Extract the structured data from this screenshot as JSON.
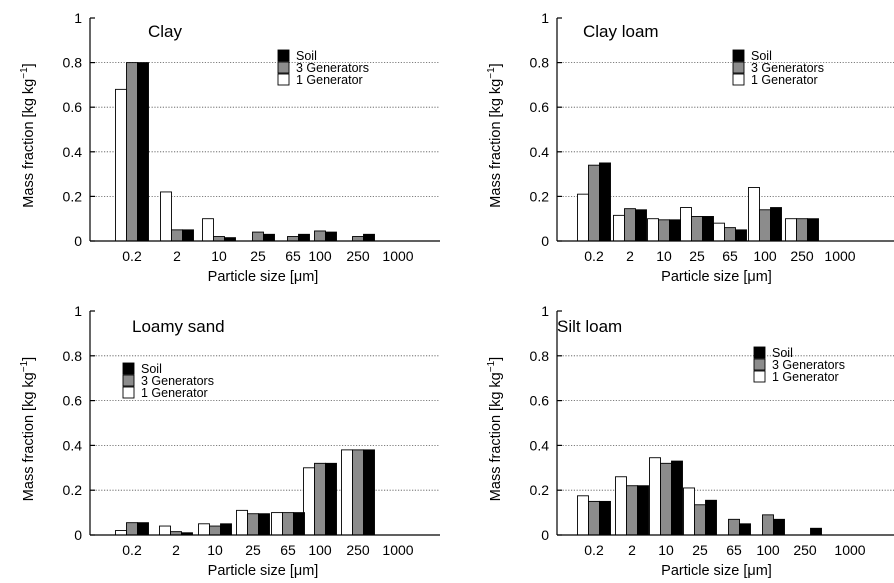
{
  "chart_data": [
    {
      "type": "bar",
      "title": "Clay",
      "xlabel": "Particle size [μm]",
      "ylabel": "Mass fraction [kg kg",
      "ylabel_sup": "−1",
      "ylabel_close": "]",
      "ylim": [
        0,
        1
      ],
      "yticks": [
        "0",
        "0.2",
        "0.4",
        "0.6",
        "0.8",
        "1"
      ],
      "categories": [
        "0.2",
        "2",
        "10",
        "25",
        "65",
        "100",
        "250",
        "1000"
      ],
      "legend_position": "top-right",
      "grid": "horizontal dotted",
      "series": [
        {
          "name": "1 Generator",
          "color": "#ffffff",
          "values": [
            0.68,
            0.22,
            0.1,
            0.0,
            0.0,
            0.0,
            0.0,
            0.0
          ]
        },
        {
          "name": "3 Generators",
          "color": "#8c8c8c",
          "values": [
            0.8,
            0.05,
            0.02,
            0.04,
            0.02,
            0.045,
            0.02,
            0.0
          ]
        },
        {
          "name": "Soil",
          "color": "#000000",
          "values": [
            0.8,
            0.05,
            0.015,
            0.03,
            0.03,
            0.04,
            0.03,
            0.0
          ]
        }
      ]
    },
    {
      "type": "bar",
      "title": "Clay loam",
      "xlabel": "Particle size [μm]",
      "ylabel": "Mass fraction [kg kg",
      "ylabel_sup": "−1",
      "ylabel_close": "]",
      "ylim": [
        0,
        1
      ],
      "yticks": [
        "0",
        "0.2",
        "0.4",
        "0.6",
        "0.8",
        "1"
      ],
      "categories": [
        "0.2",
        "2",
        "10",
        "25",
        "65",
        "100",
        "250",
        "1000"
      ],
      "legend_position": "top-right",
      "grid": "horizontal dotted",
      "series": [
        {
          "name": "1 Generator",
          "color": "#ffffff",
          "values": [
            0.21,
            0.115,
            0.1,
            0.15,
            0.08,
            0.24,
            0.1,
            0.0
          ]
        },
        {
          "name": "3 Generators",
          "color": "#8c8c8c",
          "values": [
            0.34,
            0.145,
            0.095,
            0.11,
            0.06,
            0.14,
            0.1,
            0.0
          ]
        },
        {
          "name": "Soil",
          "color": "#000000",
          "values": [
            0.35,
            0.14,
            0.095,
            0.11,
            0.05,
            0.15,
            0.1,
            0.0
          ]
        }
      ]
    },
    {
      "type": "bar",
      "title": "Loamy sand",
      "xlabel": "Particle size [μm]",
      "ylabel": "Mass fraction [kg kg",
      "ylabel_sup": "−1",
      "ylabel_close": "]",
      "ylim": [
        0,
        1
      ],
      "yticks": [
        "0",
        "0.2",
        "0.4",
        "0.6",
        "0.8",
        "1"
      ],
      "categories": [
        "0.2",
        "2",
        "10",
        "25",
        "65",
        "100",
        "250",
        "1000"
      ],
      "legend_position": "top-left",
      "grid": "horizontal dotted",
      "series": [
        {
          "name": "1 Generator",
          "color": "#ffffff",
          "values": [
            0.02,
            0.04,
            0.05,
            0.11,
            0.1,
            0.3,
            0.38,
            0.0
          ]
        },
        {
          "name": "3 Generators",
          "color": "#8c8c8c",
          "values": [
            0.055,
            0.015,
            0.04,
            0.095,
            0.1,
            0.32,
            0.38,
            0.0
          ]
        },
        {
          "name": "Soil",
          "color": "#000000",
          "values": [
            0.055,
            0.01,
            0.05,
            0.095,
            0.1,
            0.32,
            0.38,
            0.0
          ]
        }
      ]
    },
    {
      "type": "bar",
      "title": "Silt loam",
      "xlabel": "Particle size [μm]",
      "ylabel": "Mass fraction [kg kg",
      "ylabel_sup": "−1",
      "ylabel_close": "]",
      "ylim": [
        0,
        1
      ],
      "yticks": [
        "0",
        "0.2",
        "0.4",
        "0.6",
        "0.8",
        "1"
      ],
      "categories": [
        "0.2",
        "2",
        "10",
        "25",
        "65",
        "100",
        "250",
        "1000"
      ],
      "legend_position": "top-right",
      "grid": "horizontal dotted",
      "series": [
        {
          "name": "1 Generator",
          "color": "#ffffff",
          "values": [
            0.175,
            0.26,
            0.345,
            0.21,
            0.0,
            0.0,
            0.0,
            0.0
          ]
        },
        {
          "name": "3 Generators",
          "color": "#8c8c8c",
          "values": [
            0.15,
            0.22,
            0.32,
            0.135,
            0.07,
            0.09,
            0.0,
            0.0
          ]
        },
        {
          "name": "Soil",
          "color": "#000000",
          "values": [
            0.15,
            0.22,
            0.33,
            0.155,
            0.05,
            0.07,
            0.03,
            0.0
          ]
        }
      ]
    }
  ]
}
